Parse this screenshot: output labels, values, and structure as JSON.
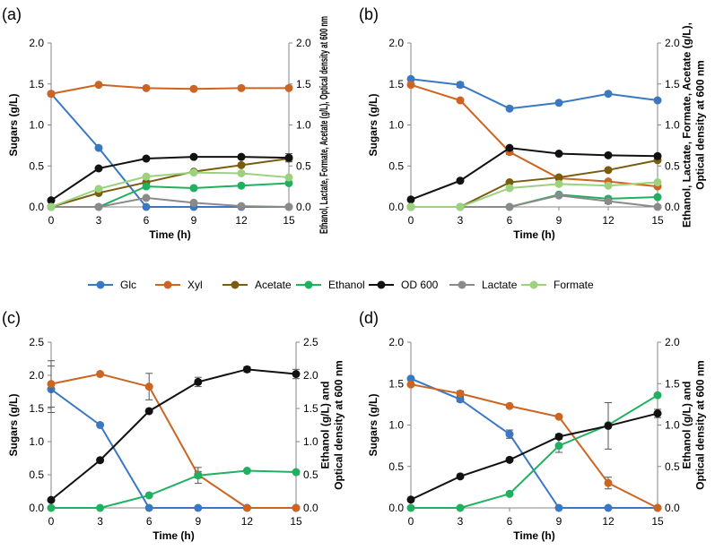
{
  "legend": [
    {
      "name": "Glc",
      "color": "#3b78c2"
    },
    {
      "name": "Xyl",
      "color": "#cc6422"
    },
    {
      "name": "Acetate",
      "color": "#7a5c0f"
    },
    {
      "name": "Ethanol",
      "color": "#20b060"
    },
    {
      "name": "OD 600",
      "color": "#111111"
    },
    {
      "name": "Lactate",
      "color": "#8a8a8a"
    },
    {
      "name": "Formate",
      "color": "#9bd17f"
    }
  ],
  "chart_data": [
    {
      "panel": "(a)",
      "type": "line",
      "x": [
        0,
        3,
        6,
        9,
        12,
        15
      ],
      "xticks": [
        "0",
        "3",
        "6",
        "9",
        "12",
        "15"
      ],
      "xlabel": "Time (h)",
      "ylabel": "Sugars (g/L)",
      "y2label": "Ethanol, Lactate, Formate, Acetate (g/L), Optical density at 600 nm",
      "ylim": [
        0,
        2
      ],
      "y2lim": [
        0,
        2
      ],
      "yticks": [
        "0.0",
        "0.5",
        "1.0",
        "1.5",
        "2.0"
      ],
      "y2ticks": [
        "0.0",
        "0.5",
        "1.0",
        "1.5",
        "2.0"
      ],
      "series": [
        {
          "name": "Glc",
          "axis": "left",
          "values": [
            1.38,
            0.72,
            0.0,
            0.0,
            0.0,
            0.0
          ],
          "err": [
            0,
            0,
            0,
            0,
            0,
            0
          ]
        },
        {
          "name": "Xyl",
          "axis": "left",
          "values": [
            1.38,
            1.49,
            1.45,
            1.44,
            1.45,
            1.45
          ],
          "err": [
            0,
            0,
            0,
            0,
            0,
            0
          ]
        },
        {
          "name": "Acetate",
          "axis": "right",
          "values": [
            0.0,
            0.17,
            0.3,
            0.43,
            0.51,
            0.59
          ],
          "err": [
            0,
            0,
            0,
            0,
            0,
            0
          ]
        },
        {
          "name": "Ethanol",
          "axis": "right",
          "values": [
            0.0,
            0.0,
            0.25,
            0.23,
            0.26,
            0.29
          ],
          "err": [
            0,
            0,
            0,
            0,
            0,
            0
          ]
        },
        {
          "name": "OD 600",
          "axis": "right",
          "values": [
            0.08,
            0.47,
            0.59,
            0.61,
            0.61,
            0.6
          ],
          "err": [
            0,
            0,
            0,
            0,
            0,
            0.05
          ]
        },
        {
          "name": "Lactate",
          "axis": "right",
          "values": [
            0.0,
            0.0,
            0.11,
            0.05,
            0.01,
            0.0
          ],
          "err": [
            0,
            0,
            0,
            0,
            0,
            0
          ]
        },
        {
          "name": "Formate",
          "axis": "right",
          "values": [
            0.0,
            0.22,
            0.37,
            0.42,
            0.41,
            0.36
          ],
          "err": [
            0,
            0,
            0,
            0,
            0,
            0
          ]
        }
      ]
    },
    {
      "panel": "(b)",
      "type": "line",
      "x": [
        0,
        3,
        6,
        9,
        12,
        15
      ],
      "xticks": [
        "0",
        "3",
        "6",
        "9",
        "12",
        "15"
      ],
      "xlabel": "Time (h)",
      "ylabel": "Sugars (g/L)",
      "y2label": "Ethanol, Lactate, Formate, Acetate (g/L), Optical density at 600 nm",
      "ylim": [
        0,
        2
      ],
      "y2lim": [
        0,
        2
      ],
      "yticks": [
        "0.0",
        "0.5",
        "1.0",
        "1.5",
        "2.0"
      ],
      "y2ticks": [
        "0.0",
        "0.5",
        "1.0",
        "1.5",
        "2.0"
      ],
      "series": [
        {
          "name": "Glc",
          "axis": "left",
          "values": [
            1.56,
            1.49,
            1.2,
            1.27,
            1.38,
            1.3
          ],
          "err": [
            0,
            0.03,
            0,
            0,
            0,
            0
          ]
        },
        {
          "name": "Xyl",
          "axis": "left",
          "values": [
            1.49,
            1.3,
            0.67,
            0.35,
            0.31,
            0.25
          ],
          "err": [
            0,
            0,
            0.03,
            0,
            0,
            0
          ]
        },
        {
          "name": "Acetate",
          "axis": "right",
          "values": [
            0.0,
            0.0,
            0.3,
            0.36,
            0.45,
            0.57
          ],
          "err": [
            0,
            0,
            0,
            0,
            0,
            0
          ]
        },
        {
          "name": "Ethanol",
          "axis": "right",
          "values": [
            0.0,
            0.0,
            0.0,
            0.15,
            0.1,
            0.12
          ],
          "err": [
            0,
            0,
            0,
            0,
            0,
            0
          ]
        },
        {
          "name": "OD 600",
          "axis": "right",
          "values": [
            0.09,
            0.32,
            0.72,
            0.65,
            0.63,
            0.62
          ],
          "err": [
            0,
            0,
            0,
            0,
            0,
            0
          ]
        },
        {
          "name": "Lactate",
          "axis": "right",
          "values": [
            0.0,
            0.0,
            0.0,
            0.14,
            0.07,
            0.0
          ],
          "err": [
            0,
            0,
            0,
            0,
            0.03,
            0
          ]
        },
        {
          "name": "Formate",
          "axis": "right",
          "values": [
            0.0,
            0.0,
            0.23,
            0.28,
            0.26,
            0.3
          ],
          "err": [
            0,
            0,
            0,
            0,
            0,
            0
          ]
        }
      ]
    },
    {
      "panel": "(c)",
      "type": "line",
      "x": [
        0,
        3,
        6,
        9,
        12,
        15
      ],
      "xticks": [
        "0",
        "3",
        "6",
        "9",
        "12",
        "15"
      ],
      "xlabel": "Time (h)",
      "ylabel": "Sugars (g/L)",
      "y2label": "Ethanol (g/L) and Optical density at 600 nm",
      "ylim": [
        0,
        2.5
      ],
      "y2lim": [
        0,
        2.5
      ],
      "yticks": [
        "0.0",
        "0.5",
        "1.0",
        "1.5",
        "2.0",
        "2.5"
      ],
      "y2ticks": [
        "0.0",
        "0.5",
        "1.0",
        "1.5",
        "2.0",
        "2.5"
      ],
      "series": [
        {
          "name": "Glc",
          "axis": "left",
          "values": [
            1.79,
            1.25,
            0.0,
            0.0,
            0.0,
            0.0
          ],
          "err": [
            0.35,
            0,
            0,
            0,
            0,
            0
          ]
        },
        {
          "name": "Xyl",
          "axis": "left",
          "values": [
            1.87,
            2.02,
            1.83,
            0.5,
            0.0,
            0.0
          ],
          "err": [
            0.35,
            0,
            0.2,
            0.05,
            0,
            0
          ]
        },
        {
          "name": "Ethanol",
          "axis": "right",
          "values": [
            0.0,
            0.0,
            0.19,
            0.49,
            0.56,
            0.54
          ],
          "err": [
            0,
            0,
            0,
            0.12,
            0,
            0
          ]
        },
        {
          "name": "OD 600",
          "axis": "right",
          "values": [
            0.12,
            0.72,
            1.46,
            1.9,
            2.09,
            2.02
          ],
          "err": [
            0,
            0,
            0,
            0.07,
            0.04,
            0.07
          ]
        }
      ]
    },
    {
      "panel": "(d)",
      "type": "line",
      "x": [
        0,
        3,
        6,
        9,
        12,
        15
      ],
      "xticks": [
        "0",
        "3",
        "6",
        "9",
        "12",
        "15"
      ],
      "xlabel": "Time (h)",
      "ylabel": "Sugars (g/L)",
      "y2label": "Ethanol (g/L) and Optical density at 600 nm",
      "ylim": [
        0,
        2
      ],
      "y2lim": [
        0,
        2
      ],
      "yticks": [
        "0.0",
        "0.5",
        "1.0",
        "1.5",
        "2.0"
      ],
      "y2ticks": [
        "0.0",
        "0.5",
        "1.0",
        "1.5",
        "2.0"
      ],
      "series": [
        {
          "name": "Glc",
          "axis": "left",
          "values": [
            1.56,
            1.31,
            0.89,
            0.0,
            0.0,
            0.0
          ],
          "err": [
            0,
            0.03,
            0.05,
            0,
            0,
            0
          ]
        },
        {
          "name": "Xyl",
          "axis": "left",
          "values": [
            1.49,
            1.38,
            1.23,
            1.1,
            0.3,
            0.0
          ],
          "err": [
            0,
            0.03,
            0,
            0,
            0.07,
            0
          ]
        },
        {
          "name": "Ethanol",
          "axis": "right",
          "values": [
            0.0,
            0.0,
            0.17,
            0.75,
            1.0,
            1.36
          ],
          "err": [
            0,
            0,
            0,
            0.08,
            0,
            0
          ]
        },
        {
          "name": "OD 600",
          "axis": "right",
          "values": [
            0.1,
            0.38,
            0.58,
            0.86,
            0.99,
            1.14
          ],
          "err": [
            0,
            0,
            0,
            0.03,
            0.28,
            0.05
          ]
        }
      ]
    }
  ]
}
